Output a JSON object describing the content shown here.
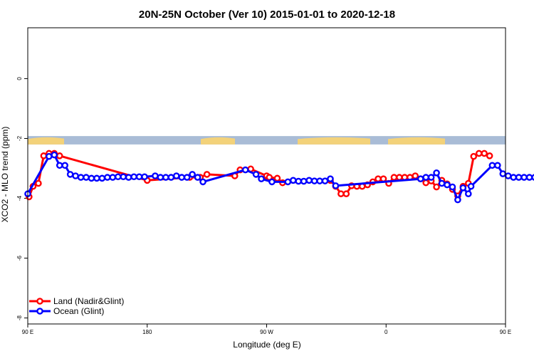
{
  "chart_data": {
    "type": "line",
    "title": "20N-25N October (Ver 10)   2015-01-01 to 2020-12-18",
    "xlabel": "Longitude (deg E)",
    "ylabel": "XCO2 - MLO trend (ppm)",
    "xlim": [
      90,
      450
    ],
    "ylim": [
      -8.2,
      1.7
    ],
    "x_ticks": [
      {
        "value": 90,
        "label": "90 E"
      },
      {
        "value": 180,
        "label": "180"
      },
      {
        "value": 270,
        "label": "90 W"
      },
      {
        "value": 360,
        "label": "0"
      },
      {
        "value": 450,
        "label": "90 E"
      },
      {
        "value": 540,
        "label": "180"
      }
    ],
    "y_ticks": [
      {
        "value": 0,
        "label": "0"
      },
      {
        "value": -2,
        "label": "-2"
      },
      {
        "value": -4,
        "label": "-4"
      },
      {
        "value": -6,
        "label": "-6"
      },
      {
        "value": -8,
        "label": "-8"
      }
    ],
    "grid": false,
    "legend_position": "bottom-left",
    "map_strip": {
      "y_top": -1.92,
      "y_bottom": -2.2,
      "ocean_color": "#a9bcd6",
      "land_color": "#f3d27a"
    },
    "series": [
      {
        "name": "Land (Nadir&Glint)",
        "color": "#ff0000",
        "points": [
          [
            91,
            -3.95
          ],
          [
            94,
            -3.6
          ],
          [
            98,
            -3.5
          ],
          [
            102,
            -2.58
          ],
          [
            106,
            -2.5
          ],
          [
            110,
            -2.5
          ],
          [
            114,
            -2.58
          ],
          [
            180,
            -3.4
          ],
          [
            212,
            -3.3
          ],
          [
            220,
            -3.3
          ],
          [
            225,
            -3.2
          ],
          [
            246,
            -3.25
          ],
          [
            250,
            -3.05
          ],
          [
            258,
            -3.02
          ],
          [
            270,
            -3.25
          ],
          [
            272,
            -3.3
          ],
          [
            278,
            -3.33
          ],
          [
            282,
            -3.48
          ],
          [
            318,
            -3.4
          ],
          [
            322,
            -3.6
          ],
          [
            326,
            -3.85
          ],
          [
            330,
            -3.85
          ],
          [
            334,
            -3.58
          ],
          [
            338,
            -3.6
          ],
          [
            342,
            -3.6
          ],
          [
            346,
            -3.55
          ],
          [
            350,
            -3.45
          ],
          [
            354,
            -3.35
          ],
          [
            358,
            -3.35
          ],
          [
            362,
            -3.5
          ],
          [
            366,
            -3.3
          ],
          [
            370,
            -3.3
          ],
          [
            374,
            -3.3
          ],
          [
            378,
            -3.3
          ],
          [
            382,
            -3.25
          ],
          [
            386,
            -3.35
          ],
          [
            390,
            -3.48
          ],
          [
            394,
            -3.42
          ],
          [
            398,
            -3.62
          ],
          [
            402,
            -3.4
          ],
          [
            406,
            -3.52
          ],
          [
            410,
            -3.7
          ],
          [
            414,
            -3.92
          ],
          [
            418,
            -3.6
          ],
          [
            422,
            -3.5
          ],
          [
            426,
            -2.6
          ],
          [
            430,
            -2.5
          ],
          [
            434,
            -2.5
          ],
          [
            438,
            -2.58
          ]
        ]
      },
      {
        "name": "Ocean (Glint)",
        "color": "#0000ff",
        "points": [
          [
            90,
            -3.85
          ],
          [
            106,
            -2.6
          ],
          [
            110,
            -2.55
          ],
          [
            114,
            -2.9
          ],
          [
            118,
            -2.9
          ],
          [
            122,
            -3.2
          ],
          [
            126,
            -3.25
          ],
          [
            130,
            -3.3
          ],
          [
            134,
            -3.3
          ],
          [
            138,
            -3.33
          ],
          [
            142,
            -3.33
          ],
          [
            146,
            -3.33
          ],
          [
            150,
            -3.3
          ],
          [
            154,
            -3.3
          ],
          [
            158,
            -3.28
          ],
          [
            162,
            -3.28
          ],
          [
            166,
            -3.3
          ],
          [
            170,
            -3.28
          ],
          [
            174,
            -3.28
          ],
          [
            178,
            -3.28
          ],
          [
            186,
            -3.25
          ],
          [
            190,
            -3.3
          ],
          [
            194,
            -3.3
          ],
          [
            198,
            -3.3
          ],
          [
            202,
            -3.25
          ],
          [
            206,
            -3.3
          ],
          [
            210,
            -3.3
          ],
          [
            214,
            -3.2
          ],
          [
            218,
            -3.3
          ],
          [
            222,
            -3.45
          ],
          [
            254,
            -3.05
          ],
          [
            262,
            -3.2
          ],
          [
            266,
            -3.35
          ],
          [
            274,
            -3.45
          ],
          [
            286,
            -3.45
          ],
          [
            290,
            -3.4
          ],
          [
            294,
            -3.43
          ],
          [
            298,
            -3.43
          ],
          [
            302,
            -3.4
          ],
          [
            306,
            -3.42
          ],
          [
            310,
            -3.42
          ],
          [
            314,
            -3.42
          ],
          [
            318,
            -3.35
          ],
          [
            322,
            -3.58
          ],
          [
            386,
            -3.35
          ],
          [
            390,
            -3.3
          ],
          [
            394,
            -3.3
          ],
          [
            398,
            -3.15
          ],
          [
            402,
            -3.5
          ],
          [
            406,
            -3.55
          ],
          [
            410,
            -3.62
          ],
          [
            414,
            -4.05
          ],
          [
            418,
            -3.65
          ],
          [
            422,
            -3.85
          ],
          [
            424,
            -3.6
          ],
          [
            440,
            -2.9
          ],
          [
            444,
            -2.9
          ],
          [
            448,
            -3.18
          ],
          [
            452,
            -3.25
          ],
          [
            456,
            -3.3
          ],
          [
            460,
            -3.3
          ],
          [
            464,
            -3.3
          ],
          [
            468,
            -3.3
          ],
          [
            472,
            -3.3
          ],
          [
            476,
            -3.3
          ],
          [
            480,
            -3.3
          ],
          [
            484,
            -3.3
          ],
          [
            488,
            -3.28
          ],
          [
            492,
            -3.28
          ],
          [
            496,
            -3.28
          ]
        ]
      }
    ]
  }
}
